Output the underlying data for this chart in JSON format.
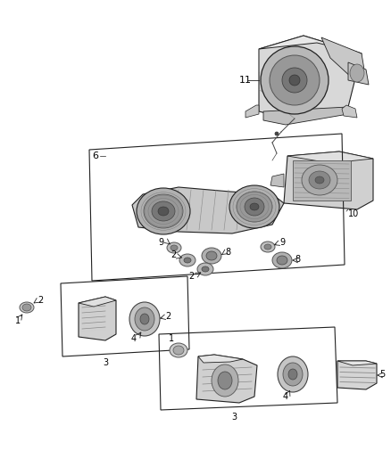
{
  "background_color": "#ffffff",
  "fig_width": 4.38,
  "fig_height": 5.33,
  "dpi": 100,
  "lc": "#222222",
  "gray1": "#cccccc",
  "gray2": "#aaaaaa",
  "gray3": "#888888",
  "gray4": "#666666",
  "gray5": "#444444",
  "gray6": "#333333",
  "gray_light": "#e0e0e0",
  "gray_mid": "#b0b0b0",
  "gray_dark": "#555555"
}
